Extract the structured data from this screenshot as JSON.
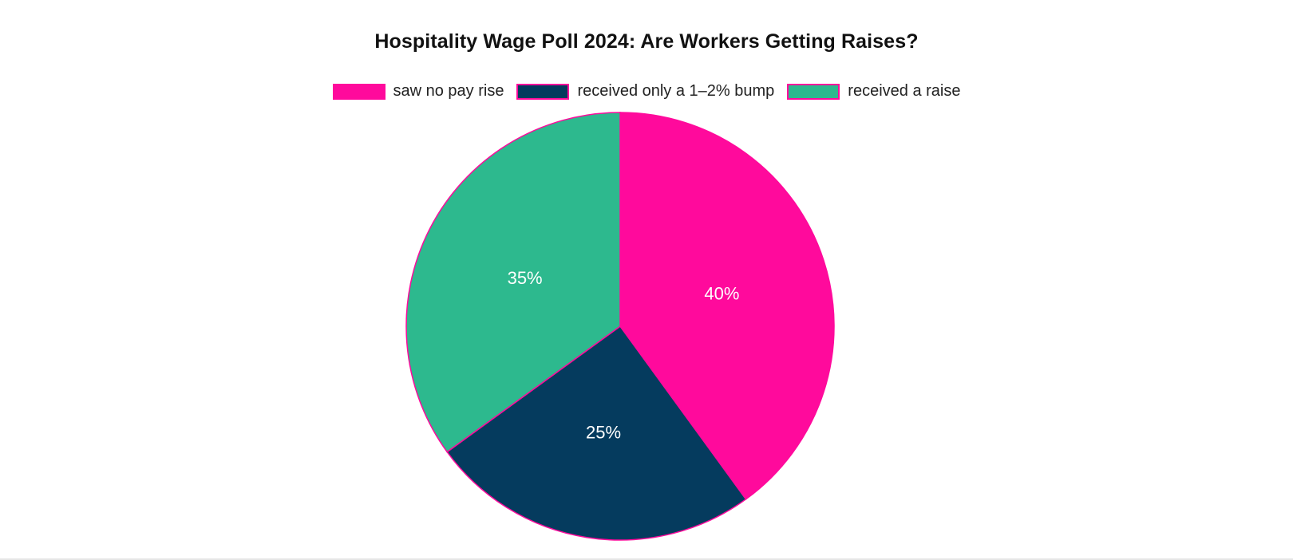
{
  "chart_data": {
    "type": "pie",
    "title": "Hospitality Wage Poll 2024: Are Workers Getting Raises?",
    "legend_position": "top",
    "slice_border_color": "#ff0a9c",
    "label_color": "#ffffff",
    "slices": [
      {
        "label": "saw no pay rise",
        "value": 40,
        "display": "40%",
        "color": "#ff0a9c"
      },
      {
        "label": "received only a 1–2% bump",
        "value": 25,
        "display": "25%",
        "color": "#053b5e"
      },
      {
        "label": "received a raise",
        "value": 35,
        "display": "35%",
        "color": "#2db98e"
      }
    ]
  }
}
